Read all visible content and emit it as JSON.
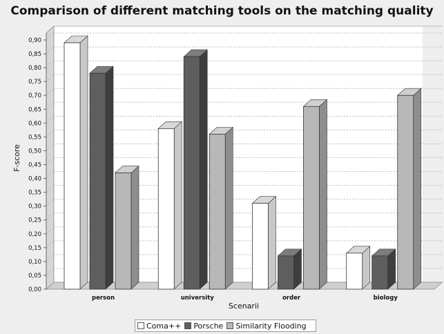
{
  "chart_data": {
    "type": "bar",
    "title": "Comparison of different matching tools on the matching quality",
    "xlabel": "Scenarii",
    "ylabel": "F-score",
    "categories": [
      "person",
      "university",
      "order",
      "biology"
    ],
    "series": [
      {
        "name": "Coma++",
        "values": [
          0.89,
          0.58,
          0.31,
          0.13
        ],
        "color": "#ffffff",
        "side": "#c8c8c8",
        "top": "#d8d8d8"
      },
      {
        "name": "Porsche",
        "values": [
          0.78,
          0.84,
          0.12,
          0.12
        ],
        "color": "#5e5e5e",
        "side": "#3e3e3e",
        "top": "#7c7c7c"
      },
      {
        "name": "Similarity Flooding",
        "values": [
          0.42,
          0.56,
          0.66,
          0.7
        ],
        "color": "#b8b8b8",
        "side": "#8e8e8e",
        "top": "#d0d0d0"
      }
    ],
    "ylim": [
      0,
      0.9
    ],
    "yticks": [
      "0,00",
      "0,05",
      "0,10",
      "0,15",
      "0,20",
      "0,25",
      "0,30",
      "0,35",
      "0,40",
      "0,45",
      "0,50",
      "0,55",
      "0,60",
      "0,65",
      "0,70",
      "0,75",
      "0,80",
      "0,85",
      "0,90"
    ],
    "grid": true,
    "legend_position": "bottom"
  }
}
